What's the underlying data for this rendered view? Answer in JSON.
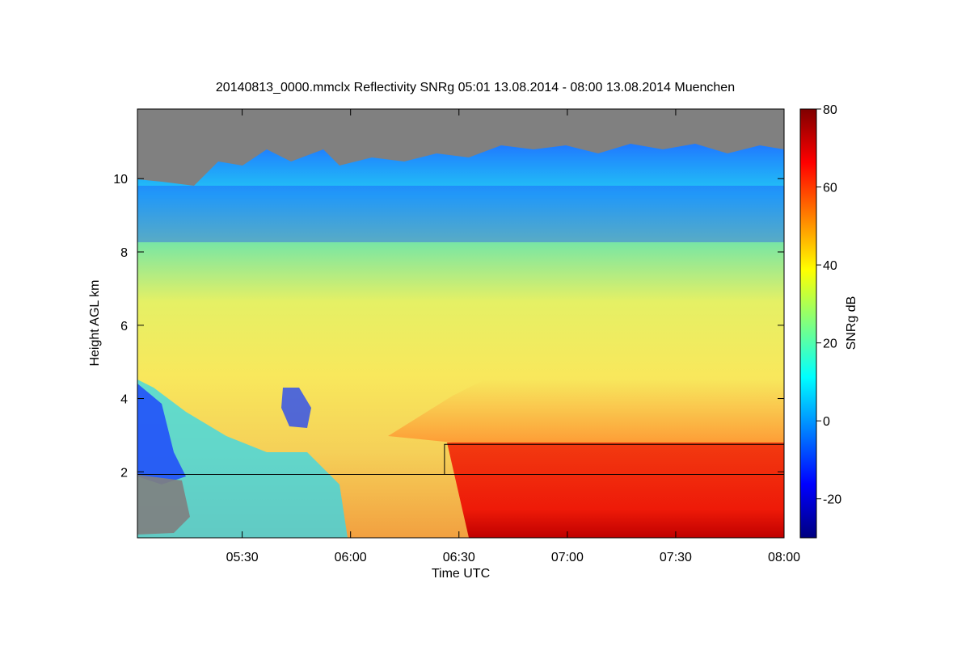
{
  "chart_data": {
    "type": "heatmap",
    "title": "20140813_0000.mmclx Reflectivity SNRg   05:01 13.08.2014 - 08:00 13.08.2014 Muenchen",
    "xlabel": "Time UTC",
    "ylabel": "Height AGL km",
    "colorbar_label": "SNRg dB",
    "x_range": [
      "05:01",
      "08:00"
    ],
    "y_range_km": [
      0.2,
      11.9
    ],
    "x_ticks": [
      "05:30",
      "06:00",
      "06:30",
      "07:00",
      "07:30",
      "08:00"
    ],
    "y_ticks": [
      2,
      4,
      6,
      8,
      10
    ],
    "colorbar_range": [
      -30,
      80
    ],
    "colorbar_ticks": [
      -20,
      0,
      20,
      40,
      60,
      80
    ],
    "colormap": "jet",
    "no_data_color": "#808080",
    "reference_line_height_km": 1.93,
    "layer_top_line": {
      "start_time": "06:26",
      "start_height_km": 1.93,
      "height_km": 2.75
    },
    "field_description": [
      {
        "region": "above ~10.5 km",
        "value": "no data (grey)"
      },
      {
        "region": "9-10.5 km",
        "value_db_approx": -15
      },
      {
        "region": "7.5-9 km",
        "value_db_approx": 15
      },
      {
        "region": "3-7.5 km",
        "value_db_approx": 35
      },
      {
        "region": "below 2.75 km after 06:30",
        "value_db_approx": 65
      }
    ]
  }
}
